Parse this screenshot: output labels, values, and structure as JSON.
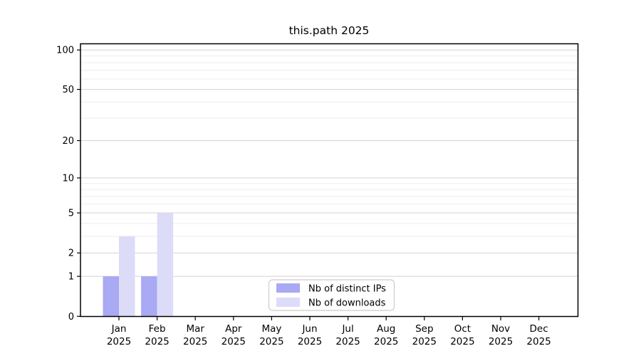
{
  "chart_data": {
    "type": "bar",
    "title": "this.path 2025",
    "months": [
      "Jan",
      "Feb",
      "Mar",
      "Apr",
      "May",
      "Jun",
      "Jul",
      "Aug",
      "Sep",
      "Oct",
      "Nov",
      "Dec"
    ],
    "year_label": "2025",
    "series": [
      {
        "name": "Nb of distinct IPs",
        "color": "#a9a9f4",
        "values": [
          1,
          1,
          0,
          0,
          0,
          0,
          0,
          0,
          0,
          0,
          0,
          0
        ]
      },
      {
        "name": "Nb of downloads",
        "color": "#dcdcf9",
        "values": [
          3,
          5,
          0,
          0,
          0,
          0,
          0,
          0,
          0,
          0,
          0,
          0
        ]
      }
    ],
    "xlabel": "",
    "ylabel": "",
    "ylim": [
      0,
      100
    ],
    "y_major_ticks": [
      100,
      50,
      20,
      10,
      5,
      2,
      1,
      0
    ],
    "y_minor_gridlines": [
      3,
      4,
      6,
      7,
      8,
      9,
      30,
      40,
      60,
      70,
      80,
      90
    ],
    "scale": "log10(1+v)",
    "grid": "horizontal",
    "legend": {
      "entries": [
        "Nb of distinct IPs",
        "Nb of downloads"
      ],
      "position": "bottom-center-inside"
    },
    "colors": {
      "background": "#ffffff",
      "axis": "#000000",
      "text": "#000000",
      "major_grid": "#d3d3d3",
      "minor_grid": "#ededed",
      "legend_border": "#cccccc",
      "legend_background": "#ffffff"
    }
  }
}
